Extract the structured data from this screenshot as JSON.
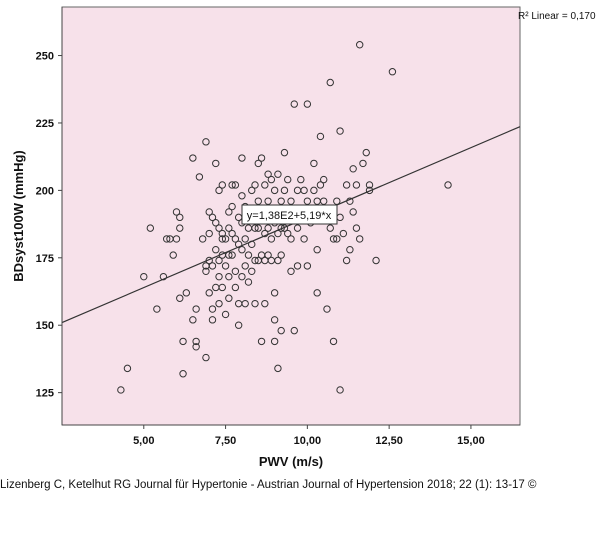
{
  "chart_data": {
    "type": "scatter",
    "xlabel": "PWV (m/s)",
    "ylabel": "BDsyst100W (mmHg)",
    "xlim": [
      2.5,
      16.5
    ],
    "ylim": [
      113,
      268
    ],
    "xticks": [
      5,
      7.5,
      10,
      12.5,
      15
    ],
    "xtick_labels": [
      "5,00",
      "7,50",
      "10,00",
      "12,50",
      "15,00"
    ],
    "yticks": [
      125,
      150,
      175,
      200,
      225,
      250
    ],
    "ytick_labels": [
      "125",
      "150",
      "175",
      "200",
      "225",
      "250"
    ],
    "r2_label": "R² Linear = 0,170",
    "equation_label": "y=1,38E2+5,19*x",
    "fit_line": {
      "intercept": 138,
      "slope": 5.19
    },
    "colors": {
      "plot_background": "#f7e1ea",
      "marker_edge": "#333333",
      "fit_line": "#333333"
    },
    "grid": false,
    "points": [
      [
        4.3,
        126
      ],
      [
        4.5,
        134
      ],
      [
        5.0,
        168
      ],
      [
        5.2,
        186
      ],
      [
        5.4,
        156
      ],
      [
        5.6,
        168
      ],
      [
        5.7,
        182
      ],
      [
        5.8,
        182
      ],
      [
        5.9,
        176
      ],
      [
        6.0,
        182
      ],
      [
        6.0,
        192
      ],
      [
        6.1,
        186
      ],
      [
        6.1,
        190
      ],
      [
        6.1,
        160
      ],
      [
        6.2,
        144
      ],
      [
        6.2,
        132
      ],
      [
        6.3,
        162
      ],
      [
        6.5,
        212
      ],
      [
        6.5,
        152
      ],
      [
        6.6,
        142
      ],
      [
        6.6,
        156
      ],
      [
        6.6,
        144
      ],
      [
        6.7,
        205
      ],
      [
        6.8,
        182
      ],
      [
        6.9,
        172
      ],
      [
        6.9,
        170
      ],
      [
        6.9,
        138
      ],
      [
        6.9,
        218
      ],
      [
        7.0,
        192
      ],
      [
        7.0,
        174
      ],
      [
        7.0,
        184
      ],
      [
        7.0,
        162
      ],
      [
        7.1,
        190
      ],
      [
        7.1,
        172
      ],
      [
        7.1,
        156
      ],
      [
        7.1,
        152
      ],
      [
        7.2,
        210
      ],
      [
        7.2,
        188
      ],
      [
        7.2,
        178
      ],
      [
        7.2,
        164
      ],
      [
        7.3,
        200
      ],
      [
        7.3,
        186
      ],
      [
        7.3,
        174
      ],
      [
        7.3,
        168
      ],
      [
        7.3,
        158
      ],
      [
        7.4,
        202
      ],
      [
        7.4,
        184
      ],
      [
        7.4,
        176
      ],
      [
        7.4,
        164
      ],
      [
        7.4,
        182
      ],
      [
        7.5,
        182
      ],
      [
        7.5,
        172
      ],
      [
        7.5,
        154
      ],
      [
        7.6,
        192
      ],
      [
        7.6,
        186
      ],
      [
        7.6,
        176
      ],
      [
        7.6,
        168
      ],
      [
        7.6,
        160
      ],
      [
        7.7,
        202
      ],
      [
        7.7,
        194
      ],
      [
        7.7,
        184
      ],
      [
        7.7,
        176
      ],
      [
        7.8,
        202
      ],
      [
        7.8,
        182
      ],
      [
        7.8,
        170
      ],
      [
        7.8,
        164
      ],
      [
        7.9,
        190
      ],
      [
        7.9,
        180
      ],
      [
        7.9,
        158
      ],
      [
        7.9,
        150
      ],
      [
        8.0,
        212
      ],
      [
        8.0,
        198
      ],
      [
        8.0,
        188
      ],
      [
        8.0,
        178
      ],
      [
        8.0,
        168
      ],
      [
        8.1,
        194
      ],
      [
        8.1,
        182
      ],
      [
        8.1,
        172
      ],
      [
        8.1,
        158
      ],
      [
        8.2,
        186
      ],
      [
        8.2,
        176
      ],
      [
        8.2,
        166
      ],
      [
        8.3,
        200
      ],
      [
        8.3,
        190
      ],
      [
        8.3,
        180
      ],
      [
        8.3,
        170
      ],
      [
        8.4,
        202
      ],
      [
        8.4,
        186
      ],
      [
        8.4,
        174
      ],
      [
        8.4,
        158
      ],
      [
        8.5,
        210
      ],
      [
        8.5,
        196
      ],
      [
        8.5,
        186
      ],
      [
        8.5,
        174
      ],
      [
        8.6,
        212
      ],
      [
        8.6,
        192
      ],
      [
        8.6,
        176
      ],
      [
        8.6,
        144
      ],
      [
        8.7,
        202
      ],
      [
        8.7,
        184
      ],
      [
        8.7,
        174
      ],
      [
        8.7,
        158
      ],
      [
        8.8,
        206
      ],
      [
        8.8,
        196
      ],
      [
        8.8,
        186
      ],
      [
        8.8,
        176
      ],
      [
        8.9,
        204
      ],
      [
        8.9,
        192
      ],
      [
        8.9,
        182
      ],
      [
        8.9,
        174
      ],
      [
        9.0,
        200
      ],
      [
        9.0,
        188
      ],
      [
        9.0,
        162
      ],
      [
        9.0,
        144
      ],
      [
        9.0,
        152
      ],
      [
        9.1,
        206
      ],
      [
        9.1,
        192
      ],
      [
        9.1,
        184
      ],
      [
        9.1,
        174
      ],
      [
        9.1,
        134
      ],
      [
        9.2,
        196
      ],
      [
        9.2,
        186
      ],
      [
        9.2,
        176
      ],
      [
        9.2,
        148
      ],
      [
        9.3,
        214
      ],
      [
        9.3,
        200
      ],
      [
        9.3,
        186
      ],
      [
        9.4,
        204
      ],
      [
        9.4,
        192
      ],
      [
        9.4,
        184
      ],
      [
        9.5,
        196
      ],
      [
        9.5,
        182
      ],
      [
        9.5,
        170
      ],
      [
        9.6,
        232
      ],
      [
        9.6,
        148
      ],
      [
        9.7,
        200
      ],
      [
        9.7,
        186
      ],
      [
        9.7,
        172
      ],
      [
        9.8,
        204
      ],
      [
        9.8,
        190
      ],
      [
        9.9,
        200
      ],
      [
        9.9,
        182
      ],
      [
        10.0,
        232
      ],
      [
        10.0,
        196
      ],
      [
        10.0,
        172
      ],
      [
        10.1,
        188
      ],
      [
        10.2,
        210
      ],
      [
        10.2,
        200
      ],
      [
        10.3,
        196
      ],
      [
        10.3,
        178
      ],
      [
        10.3,
        162
      ],
      [
        10.4,
        220
      ],
      [
        10.4,
        202
      ],
      [
        10.5,
        196
      ],
      [
        10.5,
        204
      ],
      [
        10.6,
        156
      ],
      [
        10.7,
        240
      ],
      [
        10.7,
        186
      ],
      [
        10.8,
        182
      ],
      [
        10.8,
        144
      ],
      [
        10.9,
        196
      ],
      [
        10.9,
        182
      ],
      [
        11.0,
        222
      ],
      [
        11.0,
        190
      ],
      [
        11.0,
        126
      ],
      [
        11.1,
        184
      ],
      [
        11.2,
        202
      ],
      [
        11.2,
        174
      ],
      [
        11.3,
        196
      ],
      [
        11.3,
        178
      ],
      [
        11.4,
        208
      ],
      [
        11.4,
        192
      ],
      [
        11.5,
        202
      ],
      [
        11.5,
        186
      ],
      [
        11.6,
        254
      ],
      [
        11.6,
        182
      ],
      [
        11.7,
        210
      ],
      [
        11.8,
        214
      ],
      [
        11.9,
        202
      ],
      [
        11.9,
        200
      ],
      [
        12.1,
        174
      ],
      [
        12.6,
        244
      ],
      [
        14.3,
        202
      ]
    ]
  },
  "citation": "Lizenberg C, Ketelhut RG Journal für Hypertonie - Austrian Journal of Hypertension 2018; 22 (1): 13-17 ©"
}
